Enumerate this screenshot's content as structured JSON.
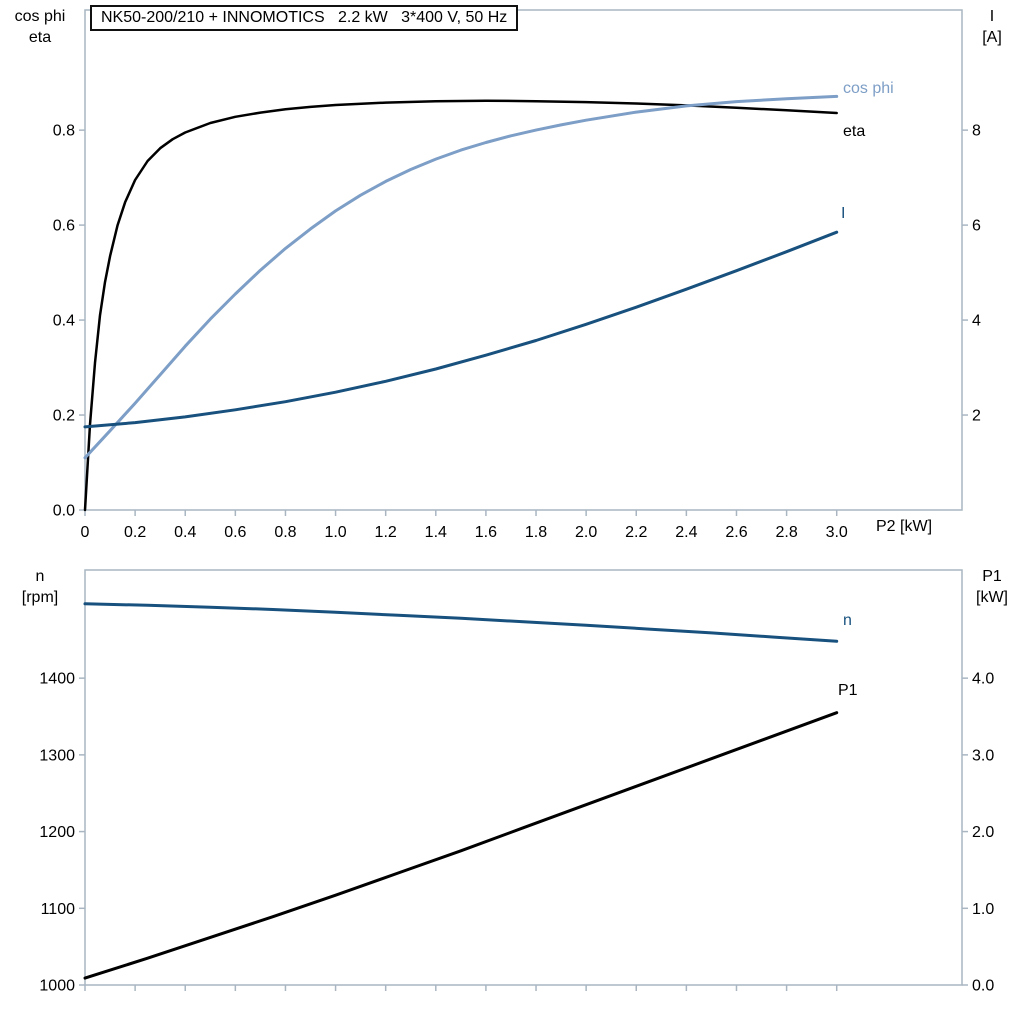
{
  "colors": {
    "frame": "#a9b6c2",
    "text": "#000000",
    "cos_phi": "#7d9ec6",
    "eta": "#000000",
    "current": "#18517e",
    "speed": "#18517e",
    "p1": "#000000"
  },
  "chart_data": [
    {
      "type": "line",
      "title": "NK50-200/210 + INNOMOTICS   2.2 kW   3*400 V, 50 Hz",
      "x_axis": {
        "label": "P2 [kW]",
        "range": [
          0,
          3.5
        ],
        "tick_labels": [
          "0",
          "0.2",
          "0.4",
          "0.6",
          "0.8",
          "1.0",
          "1.2",
          "1.4",
          "1.6",
          "1.8",
          "2.0",
          "2.2",
          "2.4",
          "2.6",
          "2.8",
          "3.0"
        ],
        "show_tick_labels": true,
        "grid": false
      },
      "left_axis": {
        "label_lines": [
          "cos phi",
          "eta"
        ],
        "range": [
          0,
          1.053
        ],
        "tick_labels": [
          "0.0",
          "0.2",
          "0.4",
          "0.6",
          "0.8"
        ]
      },
      "right_axis": {
        "label_lines": [
          "I",
          "[A]"
        ],
        "range": [
          0,
          10.53
        ],
        "tick_labels": [
          "2",
          "4",
          "6",
          "8"
        ]
      },
      "series": [
        {
          "name": "eta",
          "axis": "left",
          "color": "#000000",
          "width": 2.5,
          "points": [
            [
              0,
              0
            ],
            [
              0.02,
              0.18
            ],
            [
              0.04,
              0.31
            ],
            [
              0.06,
              0.41
            ],
            [
              0.08,
              0.48
            ],
            [
              0.1,
              0.535
            ],
            [
              0.13,
              0.6
            ],
            [
              0.16,
              0.648
            ],
            [
              0.2,
              0.695
            ],
            [
              0.25,
              0.735
            ],
            [
              0.3,
              0.762
            ],
            [
              0.35,
              0.781
            ],
            [
              0.4,
              0.795
            ],
            [
              0.5,
              0.815
            ],
            [
              0.6,
              0.828
            ],
            [
              0.7,
              0.837
            ],
            [
              0.8,
              0.844
            ],
            [
              0.9,
              0.849
            ],
            [
              1.0,
              0.853
            ],
            [
              1.2,
              0.858
            ],
            [
              1.4,
              0.861
            ],
            [
              1.6,
              0.862
            ],
            [
              1.8,
              0.861
            ],
            [
              2.0,
              0.859
            ],
            [
              2.2,
              0.856
            ],
            [
              2.4,
              0.852
            ],
            [
              2.6,
              0.847
            ],
            [
              2.8,
              0.842
            ],
            [
              3.0,
              0.836
            ]
          ]
        },
        {
          "name": "cos phi",
          "axis": "left",
          "color": "#7d9ec6",
          "width": 3,
          "points": [
            [
              0,
              0.11
            ],
            [
              0.1,
              0.167
            ],
            [
              0.2,
              0.225
            ],
            [
              0.3,
              0.285
            ],
            [
              0.4,
              0.345
            ],
            [
              0.5,
              0.402
            ],
            [
              0.6,
              0.455
            ],
            [
              0.7,
              0.505
            ],
            [
              0.8,
              0.551
            ],
            [
              0.9,
              0.592
            ],
            [
              1.0,
              0.63
            ],
            [
              1.1,
              0.663
            ],
            [
              1.2,
              0.692
            ],
            [
              1.3,
              0.717
            ],
            [
              1.4,
              0.739
            ],
            [
              1.5,
              0.758
            ],
            [
              1.6,
              0.774
            ],
            [
              1.7,
              0.788
            ],
            [
              1.8,
              0.8
            ],
            [
              1.9,
              0.811
            ],
            [
              2.0,
              0.821
            ],
            [
              2.2,
              0.838
            ],
            [
              2.4,
              0.851
            ],
            [
              2.6,
              0.86
            ],
            [
              2.8,
              0.866
            ],
            [
              3.0,
              0.871
            ]
          ]
        },
        {
          "name": "I",
          "axis": "right",
          "color": "#18517e",
          "width": 3,
          "points": [
            [
              0,
              1.75
            ],
            [
              0.2,
              1.84
            ],
            [
              0.4,
              1.96
            ],
            [
              0.6,
              2.11
            ],
            [
              0.8,
              2.28
            ],
            [
              1.0,
              2.48
            ],
            [
              1.2,
              2.71
            ],
            [
              1.4,
              2.97
            ],
            [
              1.6,
              3.26
            ],
            [
              1.8,
              3.57
            ],
            [
              2.0,
              3.91
            ],
            [
              2.2,
              4.27
            ],
            [
              2.4,
              4.65
            ],
            [
              2.6,
              5.04
            ],
            [
              2.8,
              5.44
            ],
            [
              3.0,
              5.85
            ]
          ]
        }
      ]
    },
    {
      "type": "line",
      "title": "",
      "x_axis": {
        "label": "",
        "range": [
          0,
          3.5
        ],
        "tick_labels": [
          "0",
          "0.2",
          "0.4",
          "0.6",
          "0.8",
          "1.0",
          "1.2",
          "1.4",
          "1.6",
          "1.8",
          "2.0",
          "2.2",
          "2.4",
          "2.6",
          "2.8",
          "3.0"
        ],
        "show_tick_labels": false,
        "grid": false
      },
      "left_axis": {
        "label_lines": [
          "n",
          "[rpm]"
        ],
        "range": [
          1000,
          1541
        ],
        "tick_labels": [
          "1000",
          "1100",
          "1200",
          "1300",
          "1400"
        ]
      },
      "right_axis": {
        "label_lines": [
          "P1",
          "[kW]"
        ],
        "range": [
          0,
          5.41
        ],
        "tick_labels": [
          "0.0",
          "1.0",
          "2.0",
          "3.0",
          "4.0"
        ]
      },
      "series": [
        {
          "name": "n",
          "axis": "left",
          "color": "#18517e",
          "width": 3,
          "points": [
            [
              0,
              1497
            ],
            [
              0.25,
              1495
            ],
            [
              0.5,
              1492.5
            ],
            [
              0.75,
              1489.5
            ],
            [
              1.0,
              1486
            ],
            [
              1.25,
              1482
            ],
            [
              1.5,
              1478
            ],
            [
              1.75,
              1473.5
            ],
            [
              2.0,
              1469
            ],
            [
              2.25,
              1464
            ],
            [
              2.5,
              1459
            ],
            [
              2.75,
              1453.5
            ],
            [
              3.0,
              1448
            ]
          ]
        },
        {
          "name": "P1",
          "axis": "right",
          "color": "#000000",
          "width": 3,
          "points": [
            [
              0,
              0.09
            ],
            [
              0.25,
              0.35
            ],
            [
              0.5,
              0.62
            ],
            [
              0.75,
              0.89
            ],
            [
              1.0,
              1.17
            ],
            [
              1.25,
              1.46
            ],
            [
              1.5,
              1.75
            ],
            [
              1.75,
              2.05
            ],
            [
              2.0,
              2.35
            ],
            [
              2.25,
              2.65
            ],
            [
              2.5,
              2.95
            ],
            [
              2.75,
              3.25
            ],
            [
              3.0,
              3.55
            ]
          ]
        }
      ]
    }
  ]
}
